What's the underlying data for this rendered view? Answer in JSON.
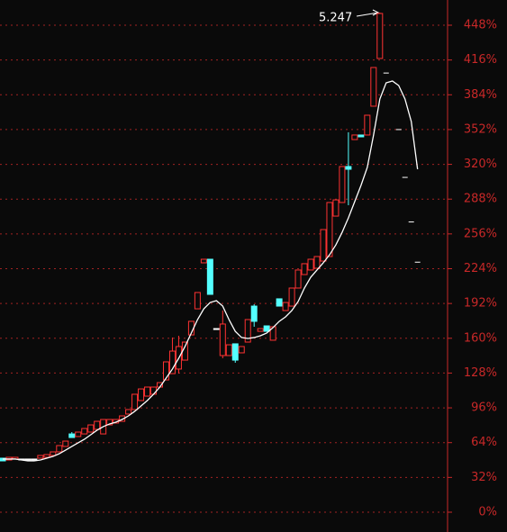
{
  "chart_data": {
    "type": "candlestick",
    "annotation": "5.247",
    "open": [
      49.7,
      48.0,
      48.9,
      48.9,
      48.9,
      48.9,
      49.7,
      50.5,
      52.2,
      55.5,
      60.5,
      72.0,
      69.6,
      72.0,
      73.7,
      76.2,
      72.0,
      80.3,
      82.0,
      83.6,
      90.3,
      94.4,
      102.7,
      106.8,
      108.5,
      115.1,
      121.7,
      127.5,
      131.7,
      139.9,
      163.1,
      187.1,
      229.4,
      232.7,
      168.9,
      144.1,
      144.1,
      154.9,
      146.6,
      156.5,
      189.6,
      166.4,
      171.4,
      158.2,
      196.3,
      185.5,
      189.6,
      206.2,
      218.6,
      222.8,
      224.4,
      231.0,
      235.2,
      272.4,
      284.9,
      318.0,
      342.8,
      347.0,
      347.0,
      373.5,
      417.4
    ],
    "high": [
      49.7,
      50.5,
      50.5,
      48.9,
      48.9,
      48.9,
      52.2,
      53.0,
      55.5,
      61.3,
      65.4,
      73.7,
      73.7,
      77.0,
      80.3,
      83.6,
      85.3,
      85.3,
      85.3,
      88.6,
      94.4,
      108.5,
      113.4,
      115.1,
      115.1,
      119.2,
      138.3,
      160.7,
      162.3,
      156.5,
      175.6,
      202.1,
      232.7,
      232.7,
      168.9,
      185.5,
      154.0,
      154.9,
      152.4,
      177.2,
      191.3,
      168.9,
      171.4,
      170.6,
      196.3,
      192.9,
      206.2,
      222.8,
      228.6,
      232.7,
      235.2,
      260.0,
      284.9,
      287.3,
      318.0,
      349.5,
      347.0,
      347.0,
      365.2,
      409.1,
      459.6
    ],
    "low": [
      47.2,
      48.0,
      48.9,
      48.9,
      48.9,
      48.9,
      49.7,
      50.5,
      52.2,
      55.5,
      60.5,
      68.7,
      69.6,
      72.0,
      73.7,
      76.2,
      72.0,
      80.3,
      82.0,
      83.6,
      90.3,
      94.4,
      102.7,
      106.8,
      108.5,
      115.1,
      121.7,
      127.5,
      127.5,
      139.9,
      163.1,
      187.1,
      229.4,
      200.4,
      168.9,
      141.6,
      144.1,
      137.5,
      146.6,
      156.5,
      170.6,
      166.4,
      166.4,
      158.2,
      189.6,
      185.5,
      189.6,
      206.2,
      218.6,
      222.8,
      224.4,
      231.0,
      235.2,
      272.4,
      284.9,
      282.4,
      342.8,
      345.3,
      347.0,
      373.5,
      417.4
    ],
    "close": [
      47.2,
      50.5,
      50.5,
      48.9,
      48.9,
      48.9,
      52.2,
      53.0,
      55.5,
      61.3,
      65.4,
      68.7,
      73.7,
      77.0,
      80.3,
      83.6,
      85.3,
      85.3,
      85.3,
      88.6,
      94.4,
      108.5,
      113.4,
      115.1,
      115.1,
      119.2,
      138.3,
      148.2,
      152.4,
      156.5,
      175.6,
      202.1,
      232.7,
      200.4,
      168.9,
      173.1,
      154.0,
      139.9,
      152.4,
      177.2,
      175.6,
      168.9,
      166.4,
      170.6,
      189.6,
      192.9,
      206.2,
      222.8,
      228.6,
      232.7,
      235.2,
      260.0,
      284.9,
      287.3,
      318.0,
      315.5,
      347.0,
      345.3,
      365.2,
      409.1,
      458.8
    ],
    "up_color": "#ff3232",
    "down_color": "#54ffff",
    "flat_color": "#ffffff",
    "moving_average": {
      "color": "#ffffff",
      "values": [
        48.9,
        48.9,
        48.9,
        48.0,
        47.2,
        47.2,
        48.0,
        49.7,
        51.3,
        53.8,
        57.1,
        60.5,
        63.8,
        67.1,
        71.2,
        75.4,
        78.7,
        81.2,
        82.8,
        85.3,
        88.6,
        92.8,
        97.7,
        102.7,
        108.5,
        115.1,
        123.4,
        131.7,
        141.6,
        152.4,
        164.8,
        177.2,
        187.1,
        192.9,
        194.6,
        189.6,
        177.2,
        166.4,
        160.7,
        159.8,
        160.7,
        162.3,
        164.8,
        169.8,
        175.6,
        179.7,
        185.5,
        193.8,
        206.2,
        216.1,
        222.8,
        229.4,
        236.8,
        245.9,
        257.5,
        270.8,
        285.7,
        300.6,
        317.2,
        347.0,
        380.1,
        395.0,
        396.7,
        392.5,
        380.1,
        359.4,
        315.5
      ]
    },
    "projection": {
      "color": "#ffffff",
      "values": [
        null,
        null,
        null,
        null,
        null,
        null,
        null,
        null,
        null,
        null,
        null,
        null,
        null,
        null,
        null,
        null,
        null,
        null,
        null,
        null,
        null,
        null,
        null,
        null,
        null,
        null,
        null,
        null,
        null,
        null,
        null,
        null,
        null,
        null,
        null,
        null,
        null,
        null,
        null,
        null,
        null,
        null,
        null,
        null,
        null,
        null,
        null,
        null,
        null,
        null,
        null,
        null,
        null,
        null,
        null,
        null,
        null,
        null,
        null,
        null,
        null,
        404,
        null,
        352,
        308,
        267,
        230
      ]
    },
    "ylim": [
      0,
      448
    ],
    "yticks": [
      {
        "value": 0,
        "label": "0%"
      },
      {
        "value": 32,
        "label": "32%"
      },
      {
        "value": 64,
        "label": "64%"
      },
      {
        "value": 96,
        "label": "96%"
      },
      {
        "value": 128,
        "label": "128%"
      },
      {
        "value": 160,
        "label": "160%"
      },
      {
        "value": 192,
        "label": "192%"
      },
      {
        "value": 224,
        "label": "224%"
      },
      {
        "value": 256,
        "label": "256%"
      },
      {
        "value": 288,
        "label": "288%"
      },
      {
        "value": 320,
        "label": "320%"
      },
      {
        "value": 352,
        "label": "352%"
      },
      {
        "value": 384,
        "label": "384%"
      },
      {
        "value": 416,
        "label": "416%"
      },
      {
        "value": 448,
        "label": "448%"
      }
    ],
    "grid": true,
    "axis_color": "#c82828"
  }
}
